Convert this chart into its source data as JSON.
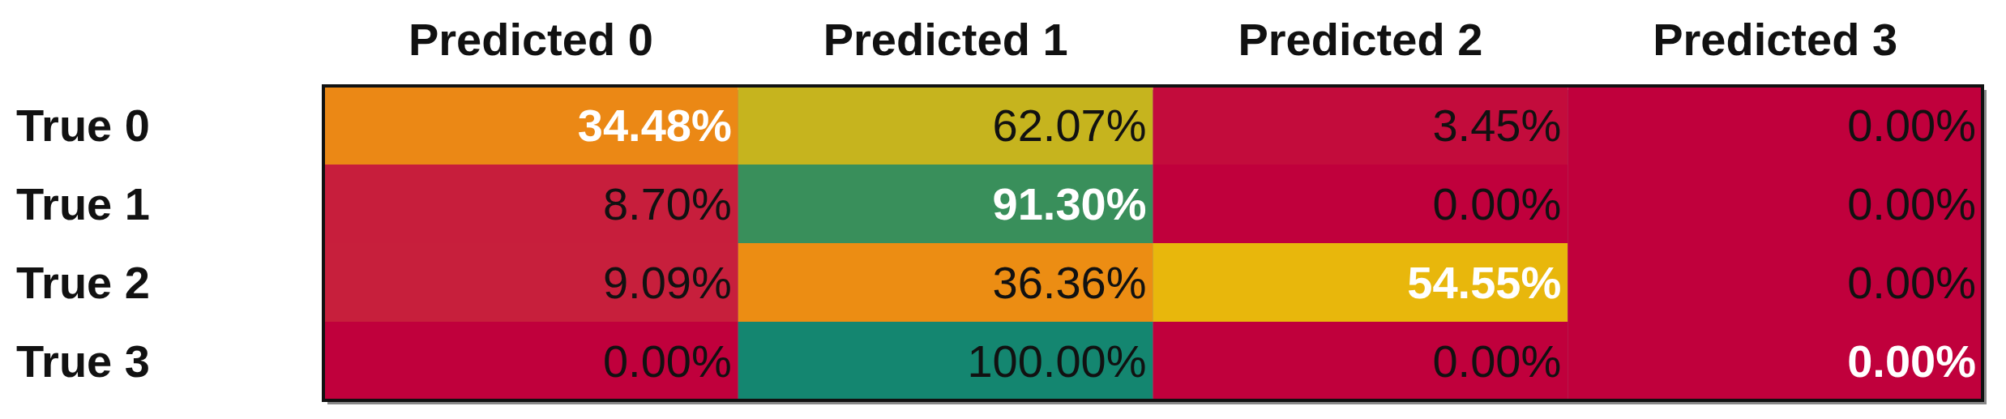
{
  "chart_data": {
    "type": "heatmap",
    "categories": [
      "Predicted 0",
      "Predicted 1",
      "Predicted 2",
      "Predicted 3"
    ],
    "y_categories": [
      "True 0",
      "True 1",
      "True 2",
      "True 3"
    ],
    "cells": [
      [
        34.48,
        62.07,
        3.45,
        0.0
      ],
      [
        8.7,
        91.3,
        0.0,
        0.0
      ],
      [
        9.09,
        36.36,
        54.55,
        0.0
      ],
      [
        0.0,
        100.0,
        0.0,
        0.0
      ]
    ],
    "cell_labels": [
      [
        "34.48%",
        "62.07%",
        "3.45%",
        "0.00%"
      ],
      [
        "8.70%",
        "91.30%",
        "0.00%",
        "0.00%"
      ],
      [
        "9.09%",
        "36.36%",
        "54.55%",
        "0.00%"
      ],
      [
        "0.00%",
        "100.00%",
        "0.00%",
        "0.00%"
      ]
    ]
  }
}
